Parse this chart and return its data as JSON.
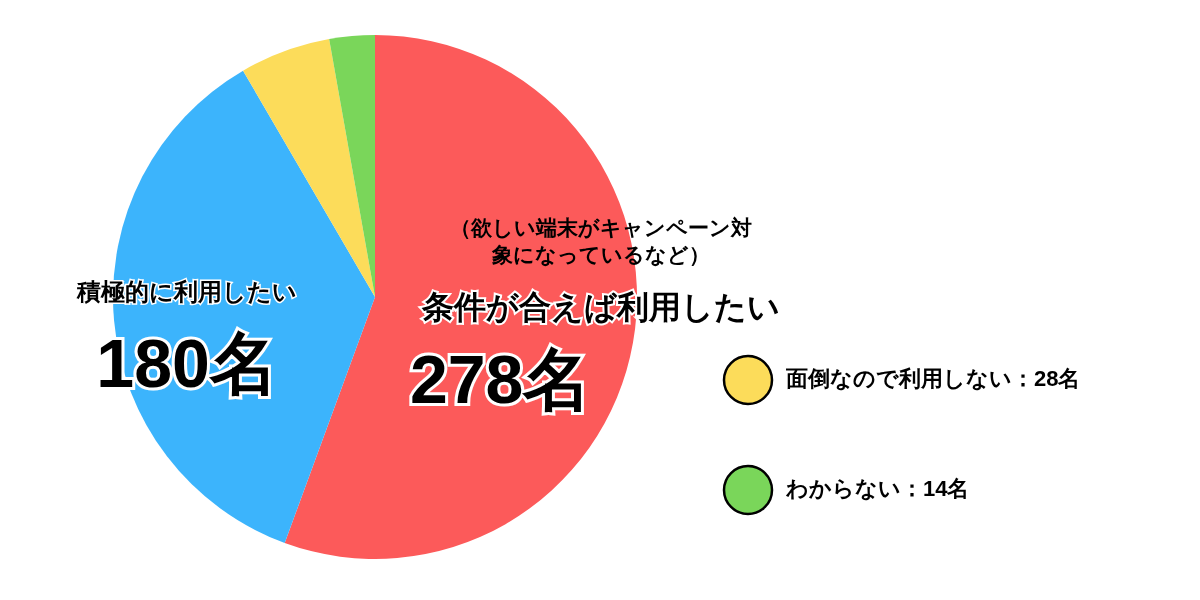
{
  "chart_data": {
    "type": "pie",
    "categories": [
      "条件が合えば利用したい",
      "積極的に利用したい",
      "面倒なので利用しない",
      "わからない"
    ],
    "values": [
      278,
      180,
      28,
      14
    ],
    "colors": [
      "#fc5a5a",
      "#3cb4fc",
      "#fcdc5a",
      "#7ad65a"
    ],
    "value_labels": [
      "278名",
      "180名",
      "28名",
      "14名"
    ],
    "annotations": [
      "（欲しい端末がキャンペーン対象になっているなど）"
    ],
    "legend": "right"
  }
}
